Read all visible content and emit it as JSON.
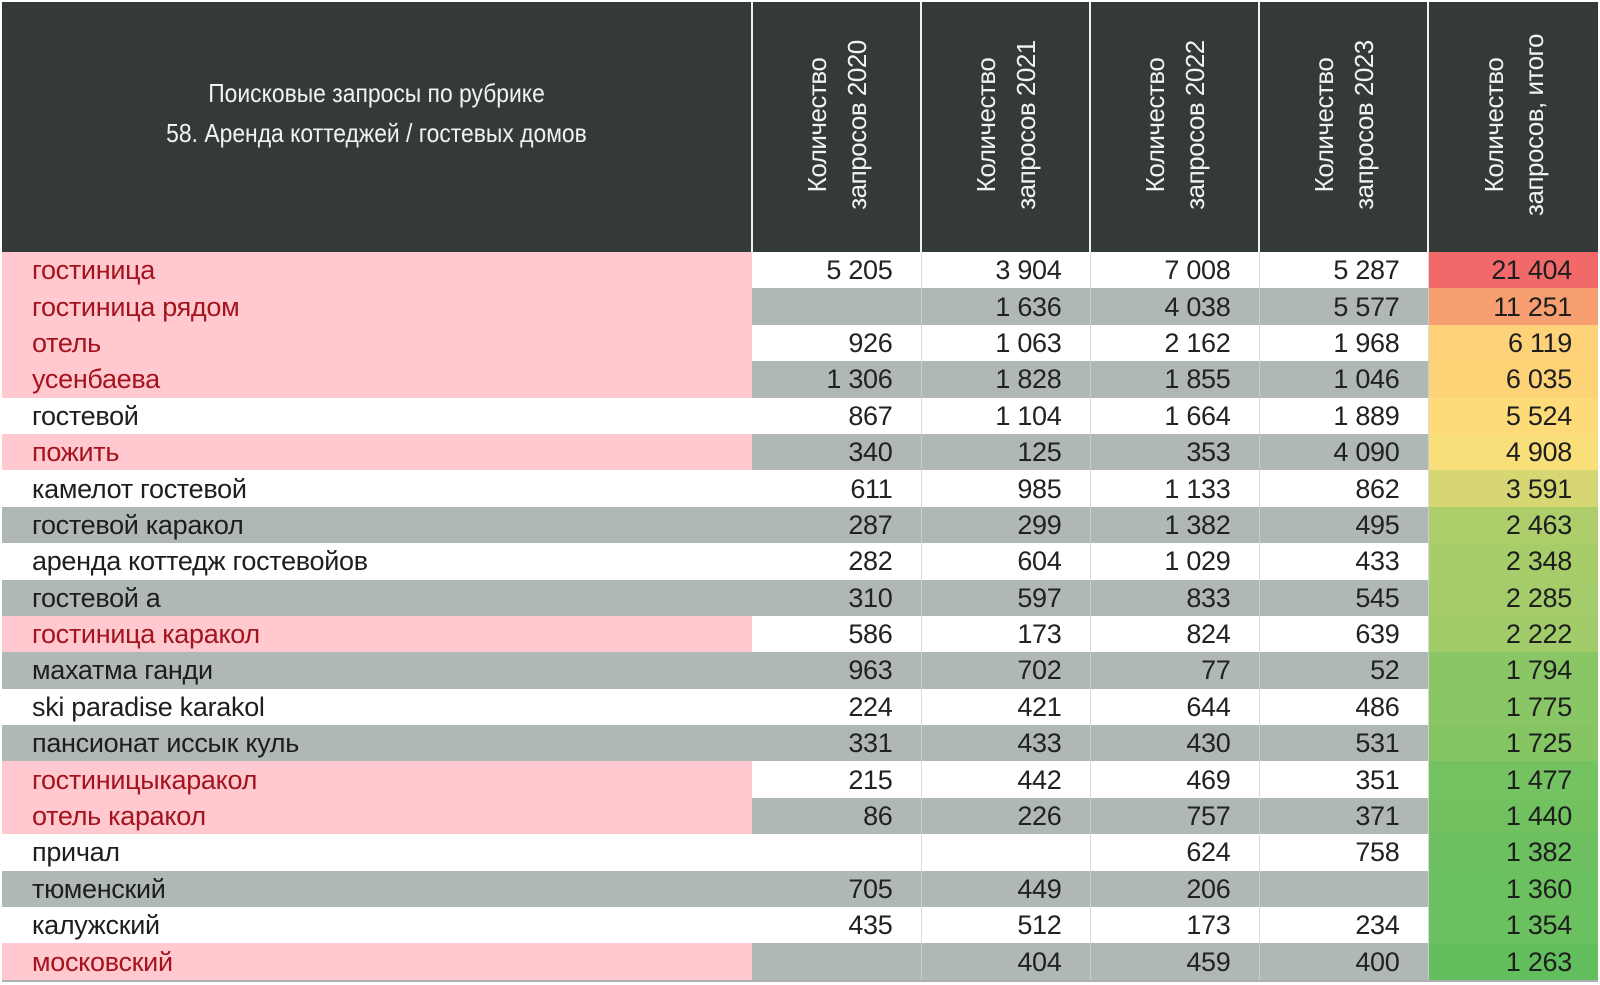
{
  "header": {
    "title_line1": "Поисковые запросы по рубрике",
    "title_line2": "58. Аренда коттеджей / гостевых домов",
    "columns": [
      {
        "line1": "Количество",
        "line2": "запросов 2020"
      },
      {
        "line1": "Количество",
        "line2": "запросов 2021"
      },
      {
        "line1": "Количество",
        "line2": "запросов 2022"
      },
      {
        "line1": "Количество",
        "line2": "запросов 2023"
      },
      {
        "line1": "Количество",
        "line2": "запросов, итого"
      }
    ]
  },
  "colors": {
    "header_bg": "#343a37",
    "stripe_gray": "#b0b8b5",
    "flag_bg": "#ffc9cf",
    "flag_text": "#a3141e",
    "total_scale_high": "#f26969",
    "total_scale_mid": "#ffe07a",
    "total_scale_low": "#63be5e"
  },
  "rows": [
    {
      "term": "гостиница",
      "flag": true,
      "v2020": "5 205",
      "v2021": "3 904",
      "v2022": "7 008",
      "v2023": "5 287",
      "total": "21 404"
    },
    {
      "term": "гостиница рядом",
      "flag": true,
      "v2020": "",
      "v2021": "1 636",
      "v2022": "4 038",
      "v2023": "5 577",
      "total": "11 251"
    },
    {
      "term": "отель",
      "flag": true,
      "v2020": "926",
      "v2021": "1 063",
      "v2022": "2 162",
      "v2023": "1 968",
      "total": "6 119"
    },
    {
      "term": "усенбаева",
      "flag": true,
      "v2020": "1 306",
      "v2021": "1 828",
      "v2022": "1 855",
      "v2023": "1 046",
      "total": "6 035"
    },
    {
      "term": "гостевой",
      "flag": false,
      "v2020": "867",
      "v2021": "1 104",
      "v2022": "1 664",
      "v2023": "1 889",
      "total": "5 524"
    },
    {
      "term": "пожить",
      "flag": true,
      "v2020": "340",
      "v2021": "125",
      "v2022": "353",
      "v2023": "4 090",
      "total": "4 908"
    },
    {
      "term": "камелот гостевой",
      "flag": false,
      "v2020": "611",
      "v2021": "985",
      "v2022": "1 133",
      "v2023": "862",
      "total": "3 591"
    },
    {
      "term": "гостевой каракол",
      "flag": false,
      "v2020": "287",
      "v2021": "299",
      "v2022": "1 382",
      "v2023": "495",
      "total": "2 463"
    },
    {
      "term": "аренда коттедж гостевойов",
      "flag": false,
      "v2020": "282",
      "v2021": "604",
      "v2022": "1 029",
      "v2023": "433",
      "total": "2 348"
    },
    {
      "term": "гостевой а",
      "flag": false,
      "v2020": "310",
      "v2021": "597",
      "v2022": "833",
      "v2023": "545",
      "total": "2 285"
    },
    {
      "term": "гостиница каракол",
      "flag": true,
      "v2020": "586",
      "v2021": "173",
      "v2022": "824",
      "v2023": "639",
      "total": "2 222"
    },
    {
      "term": "махатма ганди",
      "flag": false,
      "v2020": "963",
      "v2021": "702",
      "v2022": "77",
      "v2023": "52",
      "total": "1 794"
    },
    {
      "term": "ski paradise karakol",
      "flag": false,
      "v2020": "224",
      "v2021": "421",
      "v2022": "644",
      "v2023": "486",
      "total": "1 775"
    },
    {
      "term": "пансионат иссык куль",
      "flag": false,
      "v2020": "331",
      "v2021": "433",
      "v2022": "430",
      "v2023": "531",
      "total": "1 725"
    },
    {
      "term": "гостиницыкаракол",
      "flag": true,
      "v2020": "215",
      "v2021": "442",
      "v2022": "469",
      "v2023": "351",
      "total": "1 477"
    },
    {
      "term": "отель каракол",
      "flag": true,
      "v2020": "86",
      "v2021": "226",
      "v2022": "757",
      "v2023": "371",
      "total": "1 440"
    },
    {
      "term": "причал",
      "flag": false,
      "v2020": "",
      "v2021": "",
      "v2022": "624",
      "v2023": "758",
      "total": "1 382"
    },
    {
      "term": "тюменский",
      "flag": false,
      "v2020": "705",
      "v2021": "449",
      "v2022": "206",
      "v2023": "",
      "total": "1 360"
    },
    {
      "term": "калужский",
      "flag": false,
      "v2020": "435",
      "v2021": "512",
      "v2022": "173",
      "v2023": "234",
      "total": "1 354"
    },
    {
      "term": "московский",
      "flag": true,
      "v2020": "",
      "v2021": "404",
      "v2022": "459",
      "v2023": "400",
      "total": "1 263"
    }
  ],
  "chart_data": {
    "type": "table",
    "columns": [
      "Количество запросов 2020",
      "Количество запросов 2021",
      "Количество запросов 2022",
      "Количество запросов 2023",
      "Количество запросов, итого"
    ],
    "categories": [
      "гостиница",
      "гостиница рядом",
      "отель",
      "усенбаева",
      "гостевой",
      "пожить",
      "камелот гостевой",
      "гостевой каракол",
      "аренда коттедж гостевойов",
      "гостевой а",
      "гостиница каракол",
      "махатма ганди",
      "ski paradise karakol",
      "пансионат иссык куль",
      "гостиницыкаракол",
      "отель каракол",
      "причал",
      "тюменский",
      "калужский",
      "московский"
    ],
    "series": [
      {
        "name": "Количество запросов 2020",
        "values": [
          5205,
          null,
          926,
          1306,
          867,
          340,
          611,
          287,
          282,
          310,
          586,
          963,
          224,
          331,
          215,
          86,
          null,
          705,
          435,
          null
        ]
      },
      {
        "name": "Количество запросов 2021",
        "values": [
          3904,
          1636,
          1063,
          1828,
          1104,
          125,
          985,
          299,
          604,
          597,
          173,
          702,
          421,
          433,
          442,
          226,
          null,
          449,
          512,
          404
        ]
      },
      {
        "name": "Количество запросов 2022",
        "values": [
          7008,
          4038,
          2162,
          1855,
          1664,
          353,
          1133,
          1382,
          1029,
          833,
          824,
          77,
          644,
          430,
          469,
          757,
          624,
          206,
          173,
          459
        ]
      },
      {
        "name": "Количество запросов 2023",
        "values": [
          5287,
          5577,
          1968,
          1046,
          1889,
          4090,
          862,
          495,
          433,
          545,
          639,
          52,
          486,
          531,
          351,
          371,
          758,
          null,
          234,
          400
        ]
      },
      {
        "name": "Количество запросов, итого",
        "values": [
          21404,
          11251,
          6119,
          6035,
          5524,
          4908,
          3591,
          2463,
          2348,
          2285,
          2222,
          1794,
          1775,
          1725,
          1477,
          1440,
          1382,
          1360,
          1354,
          1263
        ]
      }
    ]
  }
}
